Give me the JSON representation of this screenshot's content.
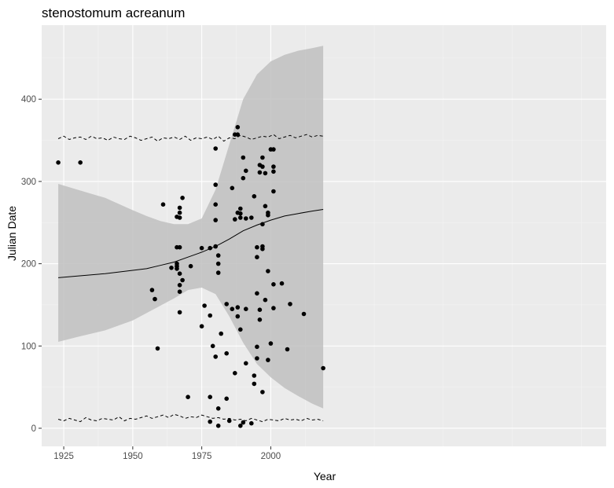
{
  "chart_data": {
    "type": "scatter",
    "title": "stenostomum acreanum",
    "xlabel": "Year",
    "ylabel": "Julian Date",
    "xlim": [
      1917,
      2121.5
    ],
    "ylim": [
      -22,
      490
    ],
    "x_ticks": [
      1925,
      1950,
      1975,
      2000
    ],
    "y_ticks": [
      0,
      100,
      200,
      300,
      400
    ],
    "x_tick_labels": [
      "1925",
      "1950",
      "1975",
      "2000"
    ],
    "y_tick_labels": [
      "0",
      "100",
      "200",
      "300",
      "400"
    ],
    "grid": true,
    "points": [
      [
        1923,
        323
      ],
      [
        1931,
        323
      ],
      [
        1957,
        168
      ],
      [
        1958,
        157
      ],
      [
        1959,
        97
      ],
      [
        1961,
        272
      ],
      [
        1964,
        195
      ],
      [
        1966,
        257
      ],
      [
        1966,
        220
      ],
      [
        1966,
        200
      ],
      [
        1966,
        197
      ],
      [
        1966,
        194
      ],
      [
        1967,
        268
      ],
      [
        1967,
        262
      ],
      [
        1967,
        256
      ],
      [
        1967,
        220
      ],
      [
        1967,
        188
      ],
      [
        1967,
        174
      ],
      [
        1967,
        166
      ],
      [
        1967,
        141
      ],
      [
        1968,
        280
      ],
      [
        1968,
        180
      ],
      [
        1970,
        38
      ],
      [
        1971,
        197
      ],
      [
        1975,
        219
      ],
      [
        1975,
        124
      ],
      [
        1976,
        149
      ],
      [
        1978,
        219
      ],
      [
        1978,
        137
      ],
      [
        1978,
        38
      ],
      [
        1978,
        8
      ],
      [
        1979,
        100
      ],
      [
        1980,
        340
      ],
      [
        1980,
        296
      ],
      [
        1980,
        272
      ],
      [
        1980,
        253
      ],
      [
        1980,
        221
      ],
      [
        1980,
        87
      ],
      [
        1981,
        210
      ],
      [
        1981,
        200
      ],
      [
        1981,
        189
      ],
      [
        1981,
        24
      ],
      [
        1981,
        3
      ],
      [
        1982,
        115
      ],
      [
        1984,
        151
      ],
      [
        1984,
        91
      ],
      [
        1984,
        36
      ],
      [
        1985,
        9
      ],
      [
        1986,
        292
      ],
      [
        1986,
        145
      ],
      [
        1987,
        357
      ],
      [
        1987,
        254
      ],
      [
        1987,
        67
      ],
      [
        1988,
        366
      ],
      [
        1988,
        357
      ],
      [
        1988,
        262
      ],
      [
        1988,
        147
      ],
      [
        1988,
        136
      ],
      [
        1989,
        267
      ],
      [
        1989,
        261
      ],
      [
        1989,
        256
      ],
      [
        1989,
        120
      ],
      [
        1989,
        3
      ],
      [
        1990,
        329
      ],
      [
        1990,
        304
      ],
      [
        1990,
        7
      ],
      [
        1991,
        313
      ],
      [
        1991,
        255
      ],
      [
        1991,
        145
      ],
      [
        1991,
        79
      ],
      [
        1993,
        256
      ],
      [
        1993,
        6
      ],
      [
        1994,
        282
      ],
      [
        1994,
        64
      ],
      [
        1994,
        54
      ],
      [
        1995,
        220
      ],
      [
        1995,
        208
      ],
      [
        1995,
        164
      ],
      [
        1995,
        99
      ],
      [
        1995,
        85
      ],
      [
        1996,
        320
      ],
      [
        1996,
        311
      ],
      [
        1996,
        144
      ],
      [
        1996,
        132
      ],
      [
        1997,
        329
      ],
      [
        1997,
        318
      ],
      [
        1997,
        248
      ],
      [
        1997,
        221
      ],
      [
        1997,
        218
      ],
      [
        1997,
        44
      ],
      [
        1998,
        310
      ],
      [
        1998,
        270
      ],
      [
        1998,
        156
      ],
      [
        1999,
        262
      ],
      [
        1999,
        259
      ],
      [
        1999,
        191
      ],
      [
        1999,
        83
      ],
      [
        2000,
        339
      ],
      [
        2000,
        103
      ],
      [
        2001,
        339
      ],
      [
        2001,
        318
      ],
      [
        2001,
        312
      ],
      [
        2001,
        288
      ],
      [
        2001,
        175
      ],
      [
        2001,
        146
      ],
      [
        2004,
        176
      ],
      [
        2006,
        96
      ],
      [
        2007,
        151
      ],
      [
        2012,
        139
      ],
      [
        2019,
        73
      ]
    ],
    "trend": {
      "x": [
        1923,
        1930,
        1940,
        1950,
        1955,
        1960,
        1965,
        1970,
        1975,
        1980,
        1985,
        1990,
        1995,
        2000,
        2005,
        2010,
        2015,
        2019
      ],
      "fit": [
        183,
        185,
        188,
        192,
        194,
        198,
        202,
        208,
        214,
        221,
        230,
        240,
        247,
        253,
        258,
        261,
        264,
        266
      ],
      "lower": [
        105,
        111,
        119,
        131,
        140,
        149,
        158,
        168,
        171,
        163,
        136,
        104,
        78,
        62,
        49,
        39,
        30,
        24
      ],
      "upper": [
        297,
        290,
        280,
        265,
        258,
        252,
        248,
        248,
        255,
        290,
        345,
        400,
        430,
        446,
        454,
        459,
        462,
        465
      ]
    },
    "upper_band": {
      "x": [
        1923,
        1925,
        1927,
        1929,
        1931,
        1933,
        1935,
        1937,
        1939,
        1941,
        1943,
        1945,
        1947,
        1949,
        1951,
        1953,
        1955,
        1957,
        1959,
        1961,
        1963,
        1965,
        1967,
        1969,
        1971,
        1973,
        1975,
        1977,
        1979,
        1981,
        1983,
        1985,
        1987,
        1989,
        1991,
        1993,
        1995,
        1997,
        1999,
        2001,
        2003,
        2005,
        2007,
        2009,
        2011,
        2013,
        2015,
        2017,
        2019
      ],
      "y": [
        352,
        355,
        351,
        353,
        354,
        351,
        355,
        352,
        353,
        350,
        354,
        352,
        351,
        355,
        353,
        350,
        352,
        354,
        349,
        353,
        352,
        354,
        351,
        355,
        350,
        353,
        352,
        354,
        351,
        355,
        349,
        353,
        352,
        356,
        354,
        351,
        353,
        355,
        354,
        357,
        352,
        354,
        356,
        353,
        355,
        357,
        354,
        356,
        355
      ]
    },
    "lower_band": {
      "x": [
        1923,
        1925,
        1927,
        1929,
        1931,
        1933,
        1935,
        1937,
        1939,
        1941,
        1943,
        1945,
        1947,
        1949,
        1951,
        1953,
        1955,
        1957,
        1959,
        1961,
        1963,
        1965,
        1967,
        1969,
        1971,
        1973,
        1975,
        1977,
        1979,
        1981,
        1983,
        1985,
        1987,
        1989,
        1991,
        1993,
        1995,
        1997,
        1999,
        2001,
        2003,
        2005,
        2007,
        2009,
        2011,
        2013,
        2015,
        2017,
        2019
      ],
      "y": [
        11,
        9,
        12,
        10,
        8,
        13,
        10,
        9,
        12,
        11,
        10,
        14,
        9,
        12,
        11,
        13,
        15,
        12,
        14,
        16,
        13,
        17,
        15,
        12,
        14,
        13,
        16,
        14,
        12,
        13,
        11,
        12,
        10,
        11,
        9,
        12,
        10,
        8,
        11,
        10,
        9,
        12,
        10,
        11,
        9,
        12,
        10,
        11,
        9
      ]
    },
    "colors": {
      "panel": "#ebebeb",
      "grid_major": "#ffffff",
      "grid_minor": "#f4f4f4",
      "ribbon": "#bfbfbf",
      "points": "#000000",
      "line": "#000000"
    }
  }
}
